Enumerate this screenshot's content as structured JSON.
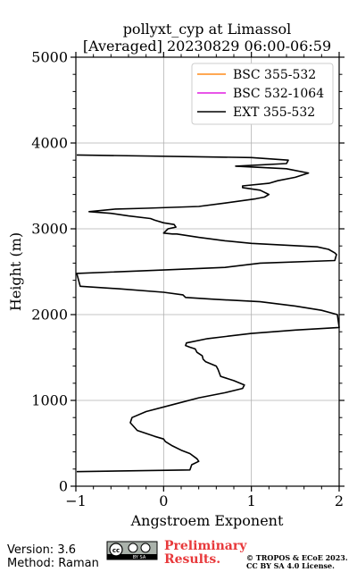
{
  "chart_data": {
    "type": "line",
    "title_line1": "pollyxt_cyp at Limassol",
    "title_line2": "[Averaged] 20230829 06:00-06:59",
    "xlabel": "Angstroem Exponent",
    "ylabel": "Height (m)",
    "xlim": [
      -1,
      2
    ],
    "ylim": [
      0,
      5000
    ],
    "xticks": [
      -1,
      0,
      1,
      2
    ],
    "yticks": [
      0,
      1000,
      2000,
      3000,
      4000,
      5000
    ],
    "x_minor_step": 0.2,
    "y_minor_step": 200,
    "grid": true,
    "legend_position": "top-right",
    "series": [
      {
        "name": "BSC 355-532",
        "color": "#ff8c1a",
        "points": []
      },
      {
        "name": "BSC 532-1064",
        "color": "#e11ee1",
        "points": []
      },
      {
        "name": "EXT 355-532",
        "color": "#000000",
        "points": [
          [
            -0.99,
            170
          ],
          [
            0.3,
            190
          ],
          [
            0.32,
            250
          ],
          [
            0.4,
            290
          ],
          [
            0.38,
            320
          ],
          [
            0.3,
            380
          ],
          [
            0.2,
            420
          ],
          [
            0.1,
            470
          ],
          [
            0.02,
            520
          ],
          [
            0.0,
            550
          ],
          [
            -0.1,
            580
          ],
          [
            -0.3,
            650
          ],
          [
            -0.38,
            740
          ],
          [
            -0.36,
            800
          ],
          [
            -0.2,
            870
          ],
          [
            0.1,
            950
          ],
          [
            0.4,
            1030
          ],
          [
            0.7,
            1090
          ],
          [
            0.9,
            1140
          ],
          [
            0.92,
            1180
          ],
          [
            0.8,
            1230
          ],
          [
            0.65,
            1280
          ],
          [
            0.62,
            1360
          ],
          [
            0.6,
            1400
          ],
          [
            0.48,
            1450
          ],
          [
            0.45,
            1480
          ],
          [
            0.44,
            1520
          ],
          [
            0.38,
            1560
          ],
          [
            0.36,
            1600
          ],
          [
            0.3,
            1620
          ],
          [
            0.25,
            1640
          ],
          [
            0.26,
            1670
          ],
          [
            0.5,
            1720
          ],
          [
            1.0,
            1780
          ],
          [
            1.5,
            1820
          ],
          [
            2.0,
            1850
          ],
          [
            1.98,
            2000
          ],
          [
            1.8,
            2050
          ],
          [
            1.5,
            2100
          ],
          [
            1.1,
            2150
          ],
          [
            0.55,
            2180
          ],
          [
            0.25,
            2200
          ],
          [
            0.22,
            2230
          ],
          [
            0.0,
            2260
          ],
          [
            -0.5,
            2300
          ],
          [
            -0.95,
            2330
          ],
          [
            -0.99,
            2480
          ],
          [
            0.0,
            2520
          ],
          [
            0.7,
            2550
          ],
          [
            1.1,
            2600
          ],
          [
            1.95,
            2630
          ],
          [
            1.97,
            2700
          ],
          [
            1.95,
            2720
          ],
          [
            1.88,
            2760
          ],
          [
            1.75,
            2790
          ],
          [
            1.0,
            2830
          ],
          [
            0.7,
            2860
          ],
          [
            0.4,
            2900
          ],
          [
            0.15,
            2940
          ],
          [
            0.1,
            2940
          ],
          [
            0.0,
            2950
          ],
          [
            0.05,
            3000
          ],
          [
            0.14,
            3020
          ],
          [
            0.12,
            3050
          ],
          [
            0.0,
            3070
          ],
          [
            -0.1,
            3100
          ],
          [
            -0.15,
            3120
          ],
          [
            -0.4,
            3150
          ],
          [
            -0.6,
            3180
          ],
          [
            -0.85,
            3200
          ],
          [
            -0.55,
            3230
          ],
          [
            -0.2,
            3240
          ],
          [
            0.4,
            3260
          ],
          [
            0.7,
            3300
          ],
          [
            1.05,
            3350
          ],
          [
            1.15,
            3370
          ],
          [
            1.2,
            3400
          ],
          [
            1.1,
            3450
          ],
          [
            0.9,
            3480
          ],
          [
            0.9,
            3500
          ],
          [
            1.2,
            3530
          ],
          [
            1.3,
            3560
          ],
          [
            1.5,
            3600
          ],
          [
            1.65,
            3650
          ],
          [
            1.4,
            3700
          ],
          [
            0.82,
            3730
          ],
          [
            1.4,
            3760
          ],
          [
            1.42,
            3800
          ],
          [
            1.0,
            3830
          ],
          [
            0.4,
            3840
          ],
          [
            -0.99,
            3860
          ]
        ]
      }
    ]
  },
  "footer": {
    "version": "Version: 3.6",
    "method": "Method: Raman",
    "badge_cc": "cc",
    "badge_by_sa": "BY SA",
    "preliminary": "Preliminary",
    "results": "Results.",
    "copyright": "© TROPOS & ECoE 2023.",
    "license": "CC BY SA 4.0 License."
  }
}
